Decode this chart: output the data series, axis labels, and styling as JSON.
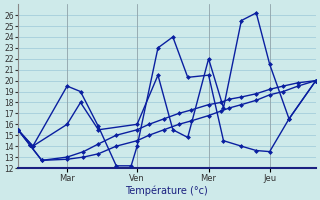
{
  "xlabel": "Température (°c)",
  "background_color": "#ceeaea",
  "grid_color": "#9dc8d8",
  "line_color": "#0a1fa0",
  "marker": "D",
  "markersize": 2.5,
  "linewidth": 1.0,
  "ylim": [
    12,
    27
  ],
  "yticks": [
    12,
    13,
    14,
    15,
    16,
    17,
    18,
    19,
    20,
    21,
    22,
    23,
    24,
    25,
    26
  ],
  "day_labels": [
    "Mar",
    "Ven",
    "Mer",
    "Jeu"
  ],
  "day_positions": [
    16.5,
    40.0,
    64.0,
    84.5
  ],
  "xlim": [
    0,
    100
  ],
  "series": [
    {
      "x": [
        0,
        4,
        8,
        16.5,
        22,
        27,
        33,
        40,
        44,
        49,
        54,
        58,
        64,
        68,
        71,
        75,
        80,
        84.5,
        89,
        94,
        100
      ],
      "y": [
        15.5,
        14.1,
        12.7,
        12.8,
        13.0,
        13.3,
        14.0,
        14.5,
        15.0,
        15.5,
        16.0,
        16.3,
        16.8,
        17.2,
        17.5,
        17.8,
        18.2,
        18.7,
        19.0,
        19.5,
        20.0
      ]
    },
    {
      "x": [
        0,
        4,
        8,
        16.5,
        22,
        27,
        33,
        40,
        44,
        49,
        54,
        58,
        64,
        68,
        71,
        75,
        80,
        84.5,
        89,
        94,
        100
      ],
      "y": [
        15.5,
        14.1,
        12.7,
        13.0,
        13.5,
        14.2,
        15.0,
        15.5,
        16.0,
        16.5,
        17.0,
        17.3,
        17.8,
        18.0,
        18.3,
        18.5,
        18.8,
        19.2,
        19.5,
        19.8,
        20.0
      ]
    },
    {
      "x": [
        0,
        5,
        16.5,
        21,
        27,
        33,
        38,
        40,
        47,
        52,
        57,
        64,
        69,
        75,
        80,
        84.5,
        91,
        100
      ],
      "y": [
        15.5,
        14.0,
        19.5,
        19.0,
        15.8,
        12.2,
        12.2,
        14.0,
        23.0,
        24.0,
        20.3,
        20.5,
        14.5,
        14.0,
        13.6,
        13.5,
        16.5,
        20.0
      ]
    },
    {
      "x": [
        0,
        5,
        16.5,
        21,
        27,
        40,
        47,
        52,
        57,
        64,
        69,
        75,
        80,
        84.5,
        91,
        100
      ],
      "y": [
        15.5,
        14.0,
        16.0,
        18.0,
        15.5,
        16.0,
        20.5,
        15.5,
        14.8,
        22.0,
        17.5,
        25.5,
        26.2,
        21.5,
        16.5,
        20.0
      ]
    }
  ]
}
